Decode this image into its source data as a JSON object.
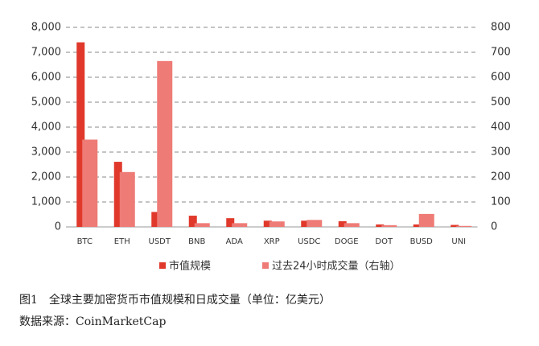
{
  "chart_data": {
    "type": "bar",
    "categories": [
      "BTC",
      "ETH",
      "USDT",
      "BNB",
      "ADA",
      "XRP",
      "USDC",
      "DOGE",
      "DOT",
      "BUSD",
      "UNI"
    ],
    "series": [
      {
        "name": "市值规模",
        "color": "#e0392b",
        "values": [
          7400,
          2610,
          600,
          450,
          350,
          250,
          250,
          230,
          100,
          100,
          80
        ]
      },
      {
        "name": "过去24小时成交量（右轴）",
        "color": "#ee7b76",
        "axis": "y2",
        "values": [
          350,
          220,
          665,
          15,
          15,
          22,
          28,
          15,
          7,
          52,
          4
        ]
      }
    ],
    "ylim": [
      0,
      8000
    ],
    "yticks": [
      0,
      {
        "value": 1000,
        "label": "1,000"
      },
      {
        "value": 2000,
        "label": "2,000"
      },
      {
        "value": 3000,
        "label": "3,000"
      },
      {
        "value": 4000,
        "label": "4,000"
      },
      {
        "value": 5000,
        "label": "5,000"
      },
      {
        "value": 6000,
        "label": "6,000"
      },
      {
        "value": 7000,
        "label": "7,000"
      },
      {
        "value": 8000,
        "label": "8,000"
      }
    ],
    "y2lim": [
      0,
      800
    ],
    "y2ticks": [
      0,
      100,
      200,
      300,
      400,
      500,
      600,
      700,
      800
    ],
    "grid": true,
    "legend": "bottom",
    "caption": "图1　全球主要加密货币市值规模和日成交量（单位：亿美元）",
    "source": "数据来源：CoinMarketCap"
  }
}
